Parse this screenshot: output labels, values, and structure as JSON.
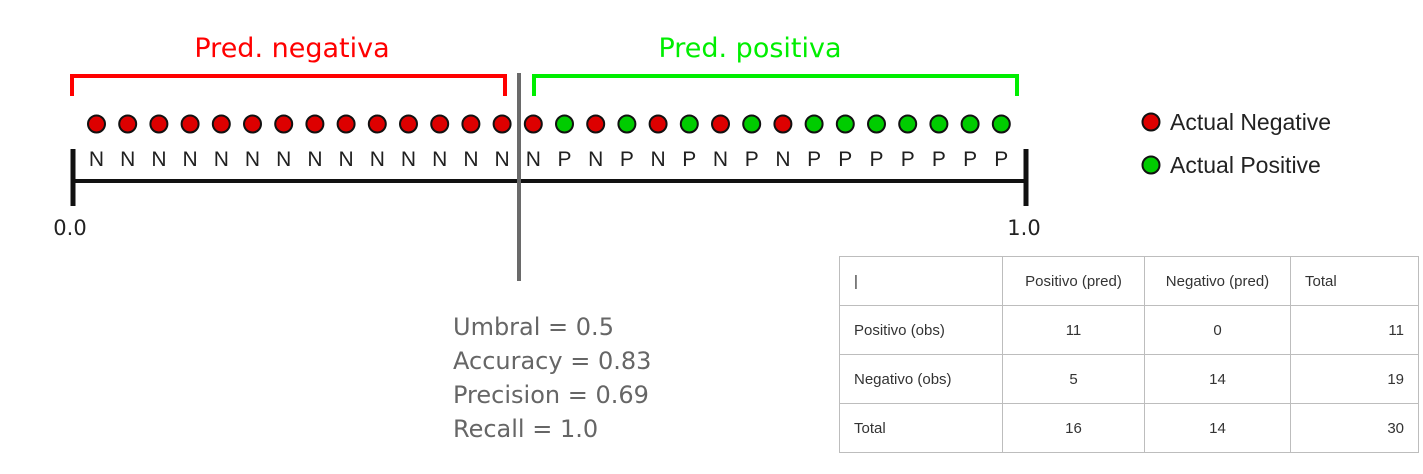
{
  "labels": {
    "pred_negative": "Pred. negativa",
    "pred_positive": "Pred. positiva"
  },
  "axis": {
    "min_label": "0.0",
    "max_label": "1.0"
  },
  "points": {
    "actual": [
      "N",
      "N",
      "N",
      "N",
      "N",
      "N",
      "N",
      "N",
      "N",
      "N",
      "N",
      "N",
      "N",
      "N",
      "N",
      "P",
      "N",
      "P",
      "N",
      "P",
      "N",
      "P",
      "N",
      "P",
      "P",
      "P",
      "P",
      "P",
      "P",
      "P"
    ],
    "colors": {
      "N": "#dd0000",
      "P": "#00cc00",
      "outline": "#111111"
    }
  },
  "threshold": 0.5,
  "legend": {
    "items": [
      {
        "label": "Actual Negative",
        "color": "#dd0000"
      },
      {
        "label": "Actual Positive",
        "color": "#00cc00"
      }
    ]
  },
  "metrics": {
    "umbral": "Umbral = 0.5",
    "accuracy": "Accuracy = 0.83",
    "precision": "Precision = 0.69",
    "recall": "Recall = 1.0"
  },
  "table": {
    "header": [
      "|",
      "Positivo (pred)",
      "Negativo (pred)",
      "Total"
    ],
    "rows": [
      [
        "Positivo (obs)",
        "11",
        "0",
        "11"
      ],
      [
        "Negativo (obs)",
        "5",
        "14",
        "19"
      ],
      [
        "Total",
        "16",
        "14",
        "30"
      ]
    ]
  },
  "brackets": {
    "negative_color": "#ff0000",
    "positive_color": "#00ee00"
  }
}
